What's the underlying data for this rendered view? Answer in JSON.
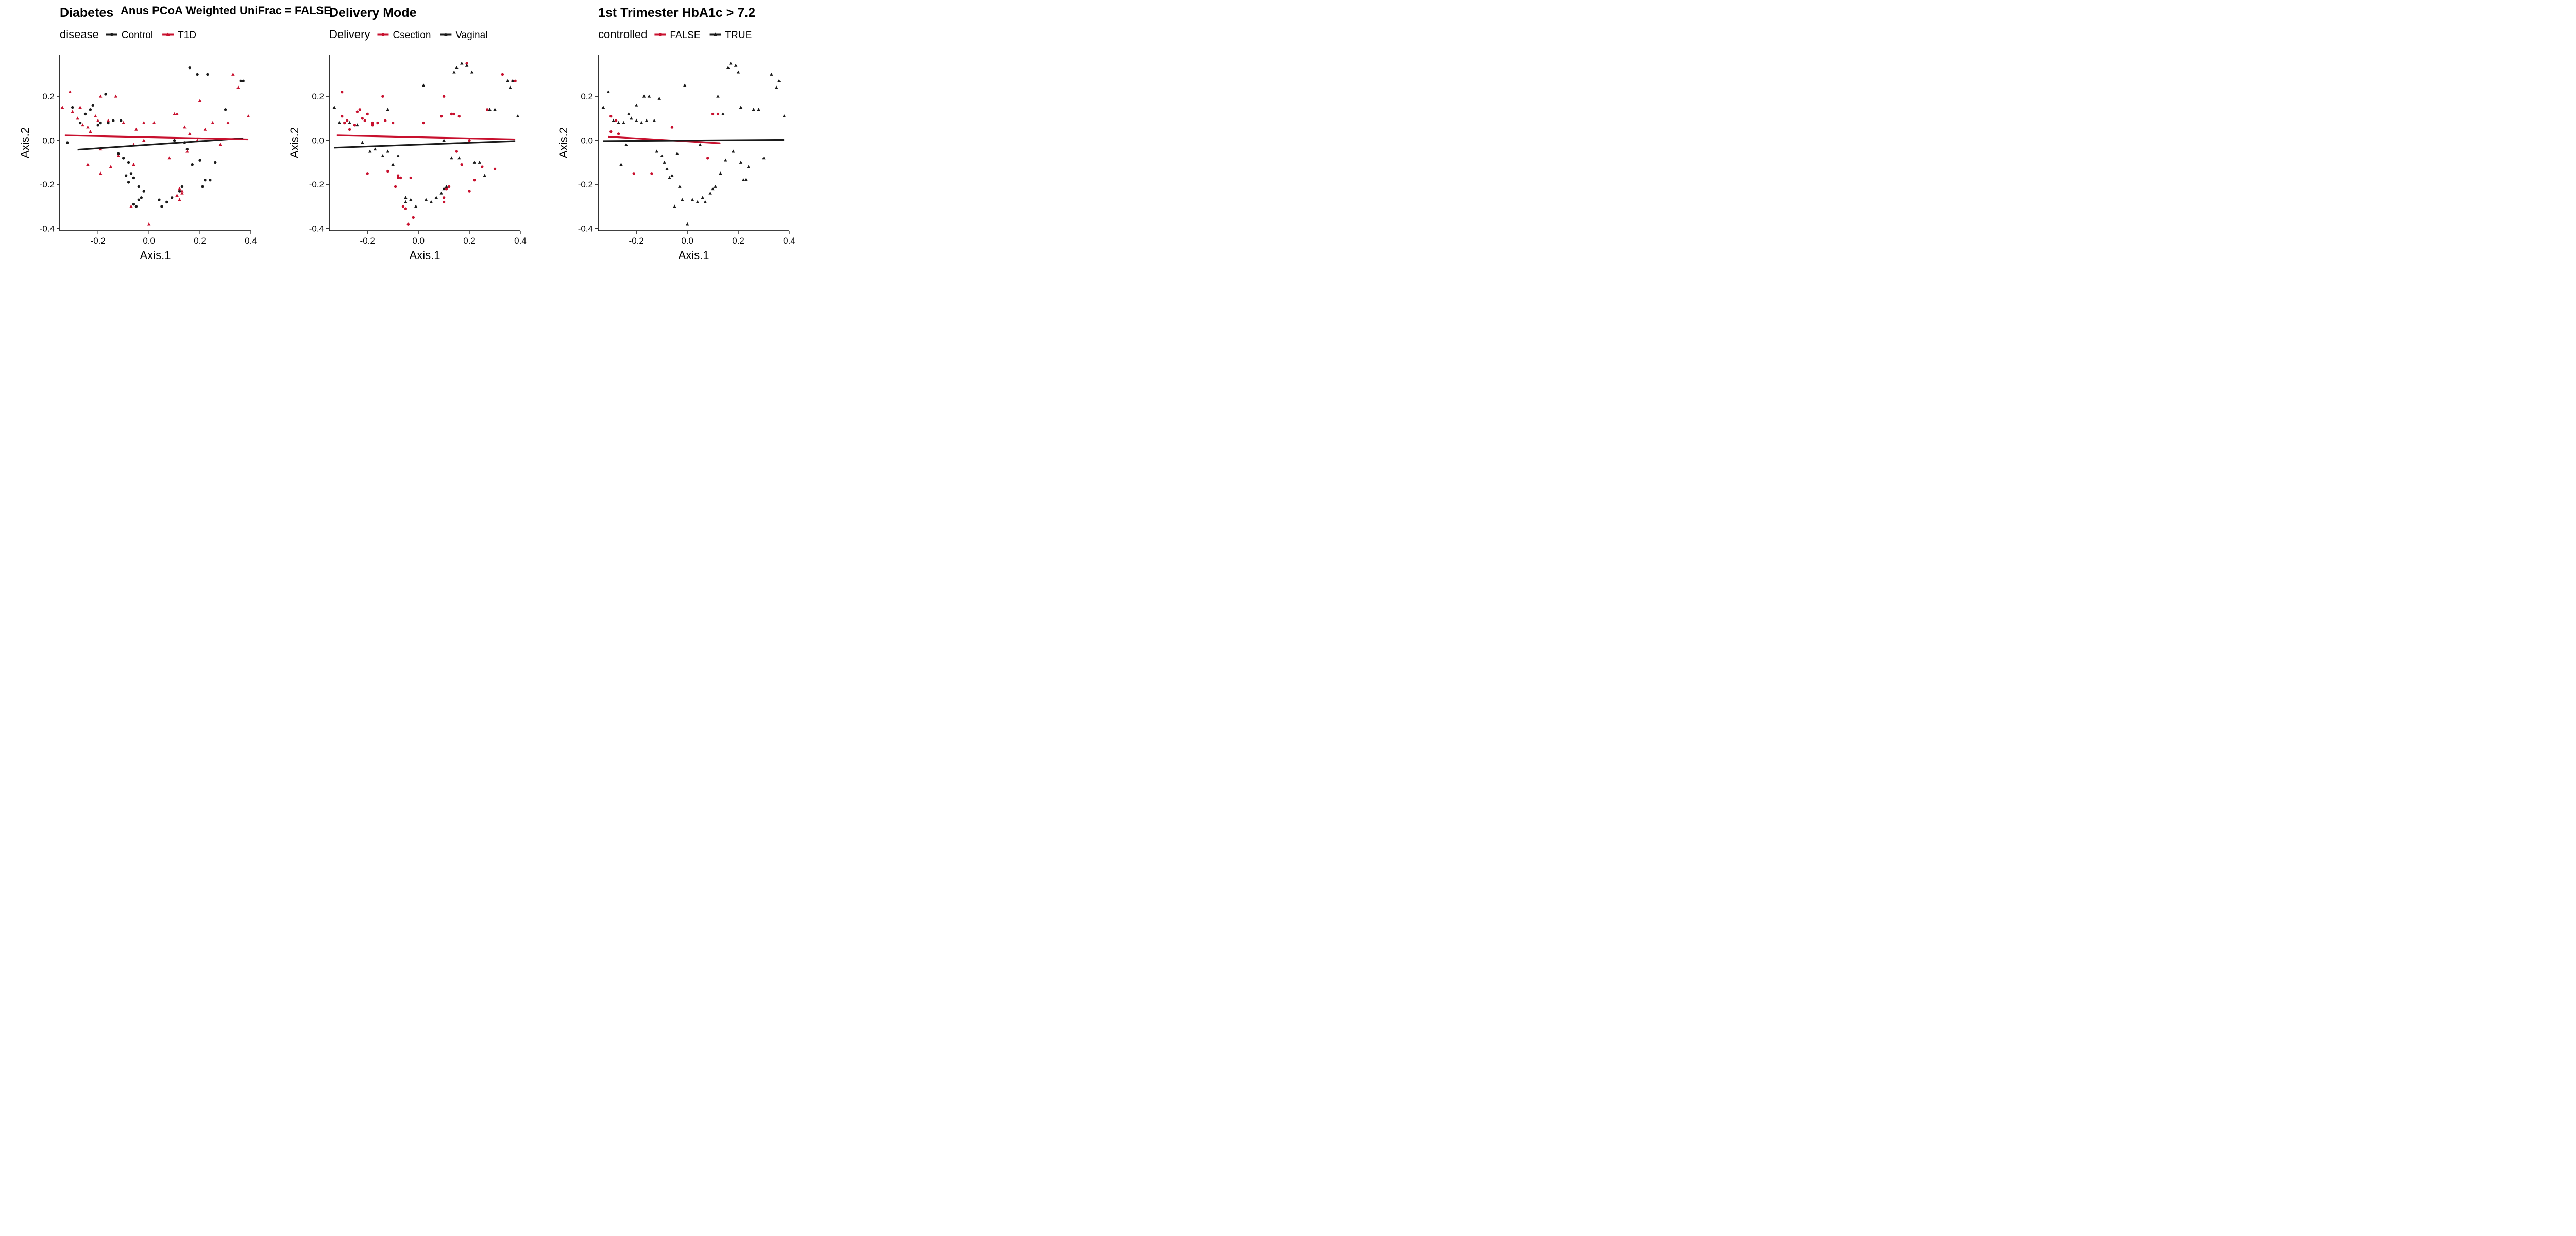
{
  "supertitle": "Anus PCoA Weighted UniFrac = FALSE",
  "colors": {
    "red": "#C8102E",
    "black": "#1a1a1a"
  },
  "chart_data": [
    {
      "type": "scatter",
      "title": "Diabetes",
      "xlabel": "Axis.1",
      "ylabel": "Axis.2",
      "xlim": [
        -0.35,
        0.4
      ],
      "ylim": [
        -0.41,
        0.39
      ],
      "xticks": [
        -0.2,
        0.0,
        0.2,
        0.4
      ],
      "yticks": [
        -0.4,
        -0.2,
        0.0,
        0.2
      ],
      "legend": {
        "title": "disease",
        "position": "top-left",
        "entries": [
          {
            "label": "Control",
            "color": "#1a1a1a",
            "shape": "circle"
          },
          {
            "label": "T1D",
            "color": "#C8102E",
            "shape": "triangle"
          }
        ]
      },
      "series": [
        {
          "name": "Control",
          "color": "#1a1a1a",
          "shape": "circle",
          "x": [
            -0.3,
            -0.27,
            -0.25,
            -0.23,
            -0.22,
            -0.27,
            -0.2,
            -0.16,
            -0.17,
            -0.14,
            -0.19,
            -0.11,
            -0.12,
            -0.08,
            -0.07,
            -0.06,
            -0.09,
            -0.08,
            -0.04,
            -0.02,
            0.04,
            0.05,
            0.07,
            0.09,
            0.12,
            0.13,
            0.15,
            0.17,
            0.2,
            0.22,
            0.24,
            0.26,
            0.21,
            0.23,
            0.19,
            0.3,
            0.36,
            0.37,
            -0.32,
            -0.05,
            -0.04,
            -0.03,
            -0.06,
            0.1,
            0.14,
            0.16,
            -0.1
          ],
          "y": [
            0.15,
            0.08,
            0.12,
            0.14,
            0.16,
            0.08,
            0.07,
            0.08,
            0.21,
            0.09,
            0.08,
            0.09,
            -0.06,
            -0.1,
            -0.15,
            -0.17,
            -0.16,
            -0.19,
            -0.21,
            -0.23,
            -0.27,
            -0.3,
            -0.28,
            -0.26,
            -0.23,
            -0.21,
            -0.04,
            -0.11,
            -0.09,
            -0.18,
            -0.18,
            -0.1,
            -0.21,
            0.3,
            0.3,
            0.14,
            0.27,
            0.27,
            -0.01,
            -0.3,
            -0.27,
            -0.26,
            -0.29,
            0.0,
            -0.01,
            0.33,
            -0.08
          ]
        },
        {
          "name": "T1D",
          "color": "#C8102E",
          "shape": "triangle",
          "x": [
            -0.34,
            -0.31,
            -0.3,
            -0.28,
            -0.26,
            -0.24,
            -0.21,
            -0.2,
            -0.23,
            -0.19,
            -0.16,
            -0.13,
            -0.1,
            -0.06,
            -0.02,
            0.0,
            -0.07,
            -0.19,
            -0.24,
            -0.19,
            -0.12,
            -0.15,
            -0.05,
            0.08,
            0.12,
            0.13,
            0.1,
            0.11,
            0.15,
            0.19,
            0.22,
            0.25,
            0.28,
            0.31,
            0.33,
            0.35,
            0.39,
            0.2,
            0.11,
            0.12,
            0.13,
            -0.02,
            -0.06,
            0.02,
            0.14,
            0.16,
            -0.27
          ],
          "y": [
            0.15,
            0.22,
            0.13,
            0.1,
            0.07,
            0.06,
            0.11,
            0.09,
            0.04,
            0.2,
            0.09,
            0.2,
            0.08,
            -0.02,
            0.0,
            -0.38,
            -0.3,
            -0.04,
            -0.11,
            -0.15,
            -0.07,
            -0.12,
            0.05,
            -0.08,
            -0.27,
            -0.24,
            0.12,
            0.12,
            -0.05,
            0.0,
            0.05,
            0.08,
            -0.02,
            0.08,
            0.3,
            0.24,
            0.11,
            0.18,
            -0.25,
            -0.22,
            -0.23,
            0.08,
            -0.11,
            0.08,
            0.06,
            0.03,
            0.15
          ]
        }
      ],
      "trendlines": [
        {
          "name": "Control",
          "color": "#1a1a1a",
          "x": [
            -0.28,
            0.37
          ],
          "y": [
            -0.042,
            0.01
          ]
        },
        {
          "name": "T1D",
          "color": "#C8102E",
          "x": [
            -0.33,
            0.39
          ],
          "y": [
            0.023,
            0.005
          ]
        }
      ]
    },
    {
      "type": "scatter",
      "title": "Delivery Mode",
      "xlabel": "Axis.1",
      "ylabel": "Axis.2",
      "xlim": [
        -0.35,
        0.4
      ],
      "ylim": [
        -0.41,
        0.39
      ],
      "xticks": [
        -0.2,
        0.0,
        0.2,
        0.4
      ],
      "yticks": [
        -0.4,
        -0.2,
        0.0,
        0.2
      ],
      "legend": {
        "title": "Delivery",
        "position": "top-left",
        "entries": [
          {
            "label": "Csection",
            "color": "#C8102E",
            "shape": "circle"
          },
          {
            "label": "Vaginal",
            "color": "#1a1a1a",
            "shape": "triangle"
          }
        ]
      },
      "series": [
        {
          "name": "Csection",
          "color": "#C8102E",
          "shape": "circle",
          "x": [
            -0.3,
            -0.3,
            -0.29,
            -0.28,
            -0.24,
            -0.23,
            -0.2,
            -0.22,
            -0.21,
            -0.18,
            -0.16,
            -0.14,
            -0.13,
            -0.1,
            -0.08,
            -0.06,
            -0.05,
            -0.03,
            -0.08,
            -0.07,
            -0.12,
            -0.09,
            -0.2,
            -0.27,
            -0.25,
            -0.18,
            0.1,
            0.1,
            0.11,
            0.12,
            0.14,
            0.19,
            0.17,
            0.2,
            0.22,
            0.27,
            0.33,
            0.37,
            0.38,
            0.2,
            0.1,
            0.13,
            -0.04,
            -0.02,
            0.02,
            0.09,
            0.15,
            0.16,
            0.25,
            0.3
          ],
          "y": [
            0.22,
            0.11,
            0.08,
            0.09,
            0.13,
            0.14,
            0.12,
            0.1,
            0.09,
            0.07,
            0.08,
            0.2,
            0.09,
            0.08,
            -0.16,
            -0.3,
            -0.31,
            -0.17,
            -0.17,
            -0.17,
            -0.14,
            -0.21,
            -0.15,
            0.05,
            0.07,
            0.08,
            -0.28,
            -0.26,
            -0.22,
            -0.21,
            0.12,
            0.35,
            -0.11,
            0.0,
            -0.18,
            0.14,
            0.3,
            0.27,
            0.27,
            -0.23,
            0.2,
            0.12,
            -0.38,
            -0.35,
            0.08,
            0.11,
            -0.05,
            0.11,
            -0.12,
            -0.13
          ],
          "note": ""
        },
        {
          "name": "Vaginal",
          "color": "#1a1a1a",
          "shape": "triangle",
          "x": [
            -0.33,
            -0.31,
            -0.27,
            -0.24,
            -0.22,
            -0.19,
            -0.17,
            -0.12,
            -0.14,
            -0.1,
            -0.12,
            -0.08,
            -0.05,
            -0.03,
            -0.01,
            0.03,
            0.05,
            0.07,
            0.09,
            0.1,
            0.11,
            0.13,
            0.15,
            0.17,
            0.19,
            0.21,
            0.22,
            0.24,
            0.26,
            0.28,
            0.3,
            0.35,
            0.36,
            0.37,
            0.39,
            0.16,
            0.14,
            0.1,
            0.02,
            -0.05
          ],
          "y": [
            0.15,
            0.08,
            0.08,
            0.07,
            -0.01,
            -0.05,
            -0.04,
            -0.05,
            -0.07,
            -0.11,
            0.14,
            -0.07,
            -0.28,
            -0.27,
            -0.3,
            -0.27,
            -0.28,
            -0.26,
            -0.24,
            -0.22,
            -0.21,
            -0.08,
            0.33,
            0.35,
            0.34,
            0.31,
            -0.1,
            -0.1,
            -0.16,
            0.14,
            0.14,
            0.27,
            0.24,
            0.27,
            0.11,
            -0.08,
            0.31,
            0.0,
            0.25,
            -0.26
          ]
        }
      ],
      "trendlines": [
        {
          "name": "Csection",
          "color": "#C8102E",
          "x": [
            -0.32,
            0.38
          ],
          "y": [
            0.023,
            0.005
          ]
        },
        {
          "name": "Vaginal",
          "color": "#1a1a1a",
          "x": [
            -0.33,
            0.38
          ],
          "y": [
            -0.033,
            -0.003
          ]
        }
      ]
    },
    {
      "type": "scatter",
      "title": "1st Trimester HbA1c > 7.2",
      "xlabel": "Axis.1",
      "ylabel": "Axis.2",
      "xlim": [
        -0.35,
        0.4
      ],
      "ylim": [
        -0.41,
        0.39
      ],
      "xticks": [
        -0.2,
        0.0,
        0.2,
        0.4
      ],
      "yticks": [
        -0.4,
        -0.2,
        0.0,
        0.2
      ],
      "legend": {
        "title": "controlled",
        "position": "top-left",
        "entries": [
          {
            "label": "FALSE",
            "color": "#C8102E",
            "shape": "circle"
          },
          {
            "label": "TRUE",
            "color": "#1a1a1a",
            "shape": "triangle"
          }
        ]
      },
      "series": [
        {
          "name": "FALSE",
          "color": "#C8102E",
          "shape": "circle",
          "x": [
            -0.3,
            -0.3,
            -0.28,
            -0.27,
            -0.21,
            -0.06,
            -0.14,
            0.08,
            0.1,
            0.12
          ],
          "y": [
            0.11,
            0.04,
            0.09,
            0.03,
            -0.15,
            0.06,
            -0.15,
            -0.08,
            0.12,
            0.12
          ]
        },
        {
          "name": "TRUE",
          "color": "#1a1a1a",
          "shape": "triangle",
          "x": [
            -0.33,
            -0.31,
            -0.29,
            -0.27,
            -0.25,
            -0.24,
            -0.23,
            -0.22,
            -0.2,
            -0.18,
            -0.17,
            -0.15,
            -0.13,
            -0.12,
            -0.1,
            -0.09,
            -0.08,
            -0.07,
            -0.05,
            -0.03,
            -0.02,
            0.0,
            0.02,
            0.04,
            0.06,
            0.07,
            0.09,
            0.1,
            0.11,
            0.13,
            0.15,
            0.16,
            0.17,
            0.19,
            0.2,
            0.21,
            0.22,
            0.23,
            0.24,
            0.26,
            0.28,
            0.3,
            0.33,
            0.35,
            0.36,
            0.38,
            -0.26,
            -0.2,
            -0.16,
            -0.11,
            -0.06,
            -0.04,
            0.12,
            0.14,
            0.18,
            0.21,
            -0.01,
            0.05
          ],
          "y": [
            0.15,
            0.22,
            0.09,
            0.08,
            0.08,
            -0.02,
            0.12,
            0.1,
            0.09,
            0.08,
            0.2,
            0.2,
            0.09,
            -0.05,
            -0.07,
            -0.1,
            -0.13,
            -0.17,
            -0.3,
            -0.21,
            -0.27,
            -0.38,
            -0.27,
            -0.28,
            -0.26,
            -0.28,
            -0.24,
            -0.22,
            -0.21,
            -0.15,
            -0.09,
            0.33,
            0.35,
            0.34,
            0.31,
            -0.1,
            -0.18,
            -0.18,
            -0.12,
            0.14,
            0.14,
            -0.08,
            0.3,
            0.24,
            0.27,
            0.11,
            -0.11,
            0.16,
            0.09,
            0.19,
            -0.16,
            -0.06,
            0.2,
            0.12,
            -0.05,
            0.15,
            0.25,
            -0.02
          ]
        }
      ],
      "trendlines": [
        {
          "name": "FALSE",
          "color": "#C8102E",
          "x": [
            -0.31,
            0.13
          ],
          "y": [
            0.017,
            -0.013
          ]
        },
        {
          "name": "TRUE",
          "color": "#1a1a1a",
          "x": [
            -0.33,
            0.38
          ],
          "y": [
            -0.003,
            0.003
          ]
        }
      ]
    }
  ]
}
